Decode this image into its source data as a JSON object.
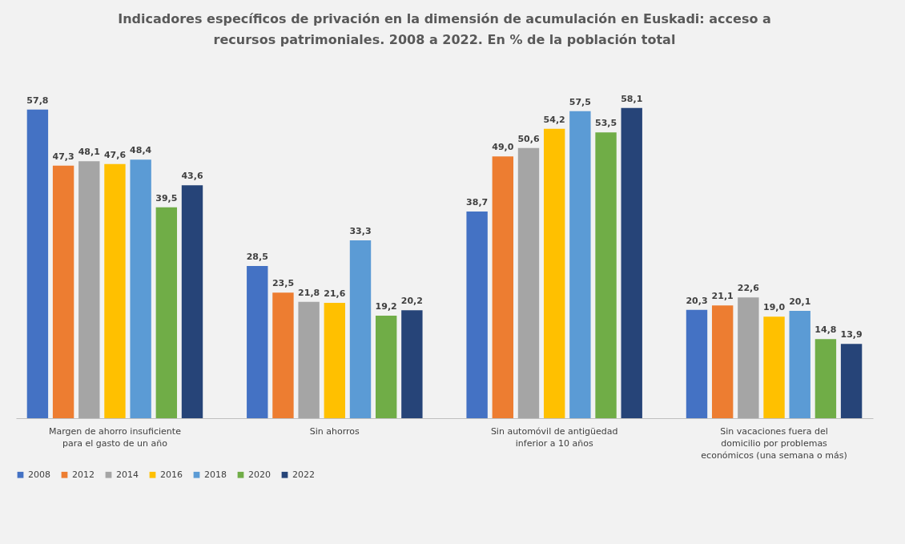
{
  "chart_data": {
    "type": "bar",
    "title": "Indicadores específicos de privación en la dimensión de acumulación en Euskadi: acceso a recursos patrimoniales. 2008 a 2022. En % de la población total",
    "categories": [
      "Margen de ahorro insuficiente para el gasto de un año",
      "Sin ahorros",
      "Sin automóvil de antigüedad inferior a 10 años",
      "Sin vacaciones fuera del domicilio por problemas económicos (una semana o más)"
    ],
    "series": [
      {
        "name": "2008",
        "color": "#4472c4",
        "values": [
          57.8,
          28.5,
          38.7,
          20.3
        ],
        "value_labels": [
          "57,8",
          "28,5",
          "38,7",
          "20,3"
        ]
      },
      {
        "name": "2012",
        "color": "#ed7d31",
        "values": [
          47.3,
          23.5,
          49.0,
          21.1
        ],
        "value_labels": [
          "47,3",
          "23,5",
          "49,0",
          "21,1"
        ]
      },
      {
        "name": "2014",
        "color": "#a5a5a5",
        "values": [
          48.1,
          21.8,
          50.6,
          22.6
        ],
        "value_labels": [
          "48,1",
          "21,8",
          "50,6",
          "22,6"
        ]
      },
      {
        "name": "2016",
        "color": "#ffc000",
        "values": [
          47.6,
          21.6,
          54.2,
          19.0
        ],
        "value_labels": [
          "47,6",
          "21,6",
          "54,2",
          "19,0"
        ]
      },
      {
        "name": "2018",
        "color": "#5b9bd5",
        "values": [
          48.4,
          33.3,
          57.5,
          20.1
        ],
        "value_labels": [
          "48,4",
          "33,3",
          "57,5",
          "20,1"
        ]
      },
      {
        "name": "2020",
        "color": "#70ad47",
        "values": [
          39.5,
          19.2,
          53.5,
          14.8
        ],
        "value_labels": [
          "39,5",
          "19,2",
          "53,5",
          "14,8"
        ]
      },
      {
        "name": "2022",
        "color": "#264478",
        "values": [
          43.6,
          20.2,
          58.1,
          13.9
        ],
        "value_labels": [
          "43,6",
          "20,2",
          "58,1",
          "13,9"
        ]
      }
    ],
    "legend": "bottom"
  }
}
